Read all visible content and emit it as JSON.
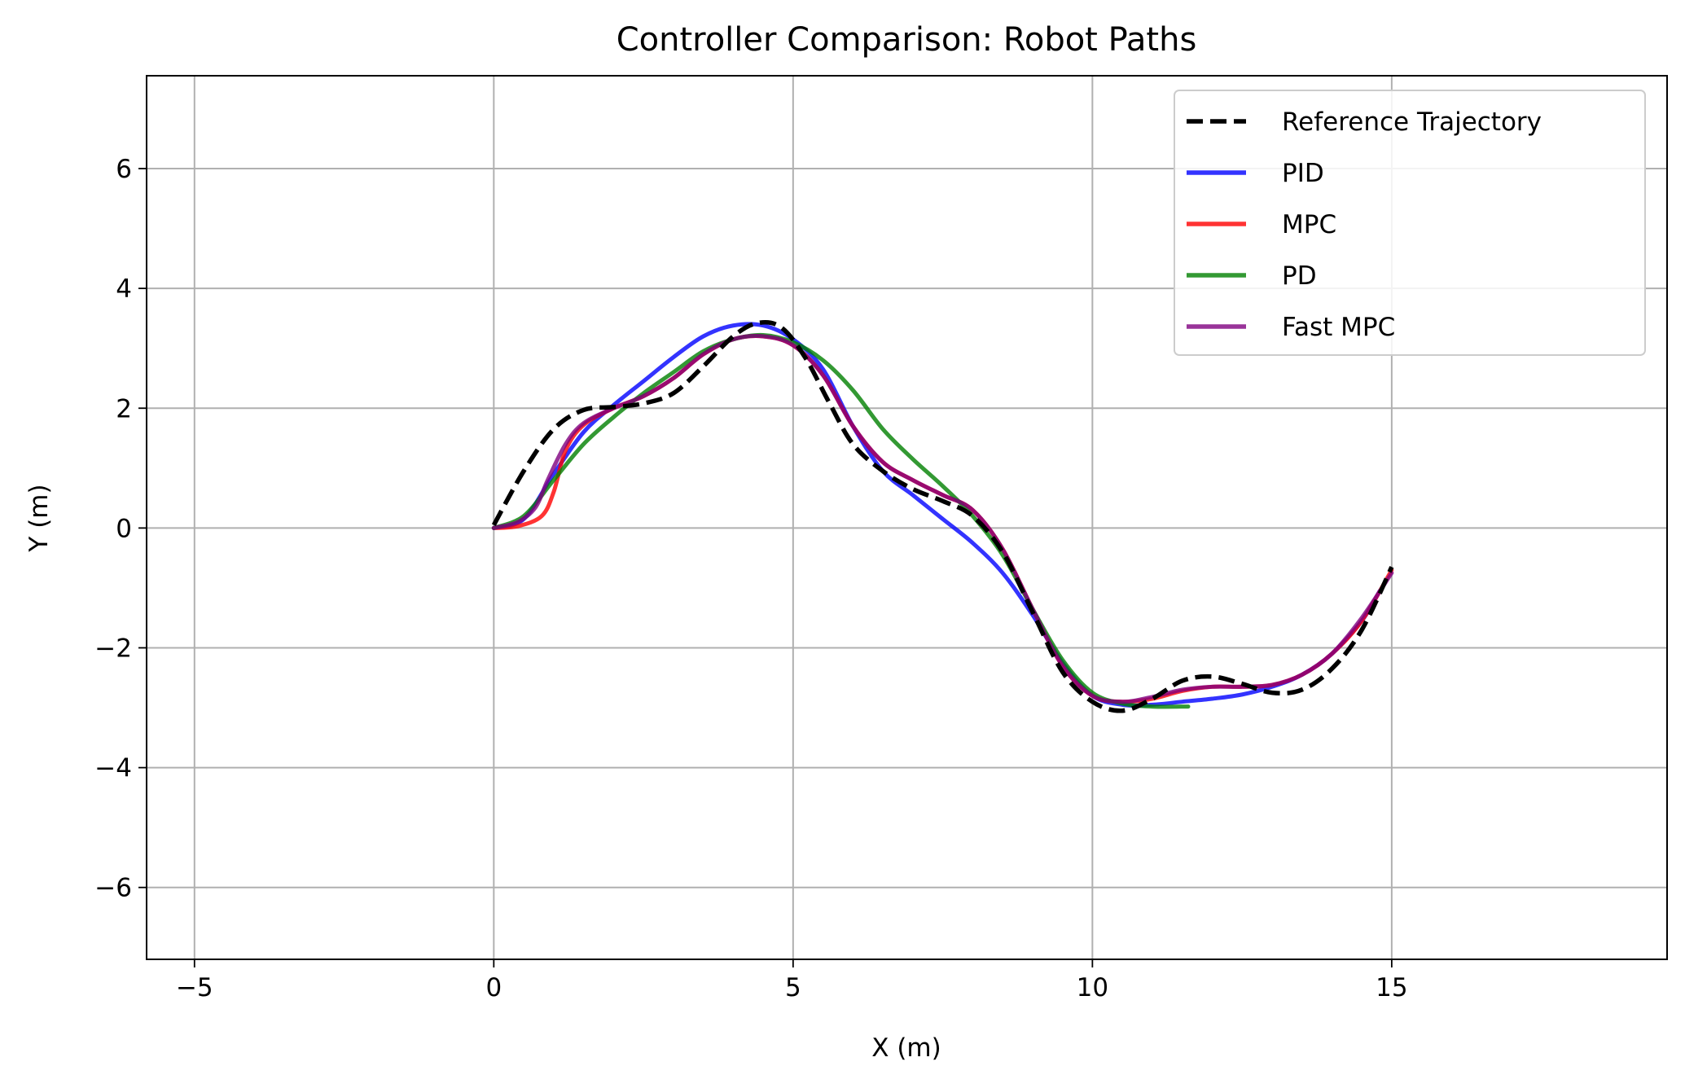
{
  "chart_data": {
    "type": "line",
    "title": "Controller Comparison: Robot Paths",
    "xlabel": "X (m)",
    "ylabel": "Y (m)",
    "xlim": [
      -5.8,
      19.6
    ],
    "ylim": [
      -7.2,
      7.55
    ],
    "xticks": [
      -5,
      0,
      5,
      10,
      15
    ],
    "yticks": [
      -6,
      -4,
      -2,
      0,
      2,
      4,
      6
    ],
    "xtick_labels": [
      "−5",
      "0",
      "5",
      "10",
      "15"
    ],
    "ytick_labels": [
      "−6",
      "−4",
      "−2",
      "0",
      "2",
      "4",
      "6"
    ],
    "grid": true,
    "legend_position": "top-right",
    "series": [
      {
        "name": "Reference Trajectory",
        "color": "#000000",
        "dashed": true,
        "x": [
          0,
          0.5,
          1.0,
          1.5,
          2.0,
          2.5,
          3.0,
          3.5,
          4.0,
          4.4,
          4.8,
          5.2,
          5.6,
          6.0,
          6.5,
          7.0,
          7.5,
          8.0,
          8.5,
          9.0,
          9.5,
          10.0,
          10.5,
          11.0,
          11.5,
          12.0,
          12.5,
          13.0,
          13.5,
          14.0,
          14.5,
          15.0
        ],
        "y": [
          0.05,
          0.95,
          1.65,
          1.97,
          2.02,
          2.08,
          2.25,
          2.7,
          3.2,
          3.42,
          3.35,
          2.85,
          2.1,
          1.4,
          0.95,
          0.65,
          0.45,
          0.2,
          -0.4,
          -1.4,
          -2.4,
          -2.9,
          -3.05,
          -2.85,
          -2.55,
          -2.48,
          -2.6,
          -2.75,
          -2.7,
          -2.35,
          -1.7,
          -0.65
        ]
      },
      {
        "name": "PID",
        "color": "#0000ff",
        "dashed": false,
        "x": [
          0,
          0.5,
          1.0,
          1.5,
          2.0,
          2.5,
          3.0,
          3.5,
          4.0,
          4.5,
          5.0,
          5.5,
          6.0,
          6.5,
          7.0,
          7.5,
          8.0,
          8.5,
          9.0,
          9.5,
          10.0,
          10.5,
          11.0,
          11.5,
          12.0,
          12.5,
          13.0,
          13.5,
          14.0,
          14.5,
          14.8
        ],
        "y": [
          0,
          0.15,
          0.9,
          1.6,
          2.05,
          2.45,
          2.85,
          3.2,
          3.38,
          3.38,
          3.15,
          2.65,
          1.7,
          0.95,
          0.55,
          0.15,
          -0.25,
          -0.75,
          -1.45,
          -2.25,
          -2.8,
          -2.95,
          -2.95,
          -2.9,
          -2.85,
          -2.78,
          -2.65,
          -2.45,
          -2.1,
          -1.55,
          -1.05
        ]
      },
      {
        "name": "MPC",
        "color": "#ff0000",
        "dashed": false,
        "x": [
          0,
          0.4,
          0.8,
          1.0,
          1.2,
          1.5,
          2.0,
          2.5,
          3.0,
          3.5,
          4.0,
          4.5,
          5.0,
          5.5,
          6.0,
          6.5,
          7.0,
          7.5,
          8.0,
          8.5,
          9.0,
          9.5,
          10.0,
          10.5,
          11.0,
          11.5,
          12.0,
          12.5,
          13.0,
          13.5,
          14.0,
          14.5,
          15.0
        ],
        "y": [
          0,
          0.03,
          0.2,
          0.6,
          1.3,
          1.72,
          2.0,
          2.2,
          2.5,
          2.9,
          3.15,
          3.2,
          3.05,
          2.55,
          1.7,
          1.1,
          0.8,
          0.55,
          0.3,
          -0.35,
          -1.35,
          -2.3,
          -2.8,
          -2.9,
          -2.85,
          -2.72,
          -2.65,
          -2.65,
          -2.62,
          -2.45,
          -2.1,
          -1.55,
          -0.7
        ]
      },
      {
        "name": "PD",
        "color": "#008000",
        "dashed": false,
        "x": [
          0,
          0.5,
          1.0,
          1.5,
          2.0,
          2.5,
          3.0,
          3.5,
          4.0,
          4.5,
          5.0,
          5.5,
          6.0,
          6.5,
          7.0,
          7.5,
          8.0,
          8.5,
          9.0,
          9.5,
          10.0,
          10.5,
          11.0,
          11.6
        ],
        "y": [
          0,
          0.2,
          0.8,
          1.4,
          1.85,
          2.25,
          2.6,
          2.95,
          3.15,
          3.22,
          3.1,
          2.8,
          2.3,
          1.65,
          1.15,
          0.7,
          0.2,
          -0.45,
          -1.35,
          -2.2,
          -2.75,
          -2.93,
          -2.98,
          -2.98
        ]
      },
      {
        "name": "Fast MPC",
        "color": "#800080",
        "dashed": false,
        "x": [
          0,
          0.4,
          0.7,
          0.9,
          1.2,
          1.5,
          2.0,
          2.5,
          3.0,
          3.5,
          4.0,
          4.5,
          5.0,
          5.5,
          6.0,
          6.5,
          7.0,
          7.5,
          8.0,
          8.5,
          9.0,
          9.5,
          10.0,
          10.5,
          11.0,
          11.5,
          12.0,
          12.5,
          13.0,
          13.5,
          14.0,
          14.5,
          15.0
        ],
        "y": [
          0,
          0.1,
          0.35,
          0.8,
          1.4,
          1.75,
          2.0,
          2.2,
          2.5,
          2.9,
          3.15,
          3.2,
          3.05,
          2.55,
          1.7,
          1.1,
          0.8,
          0.55,
          0.3,
          -0.35,
          -1.35,
          -2.3,
          -2.8,
          -2.9,
          -2.82,
          -2.7,
          -2.65,
          -2.65,
          -2.62,
          -2.45,
          -2.1,
          -1.5,
          -0.75
        ]
      }
    ]
  }
}
